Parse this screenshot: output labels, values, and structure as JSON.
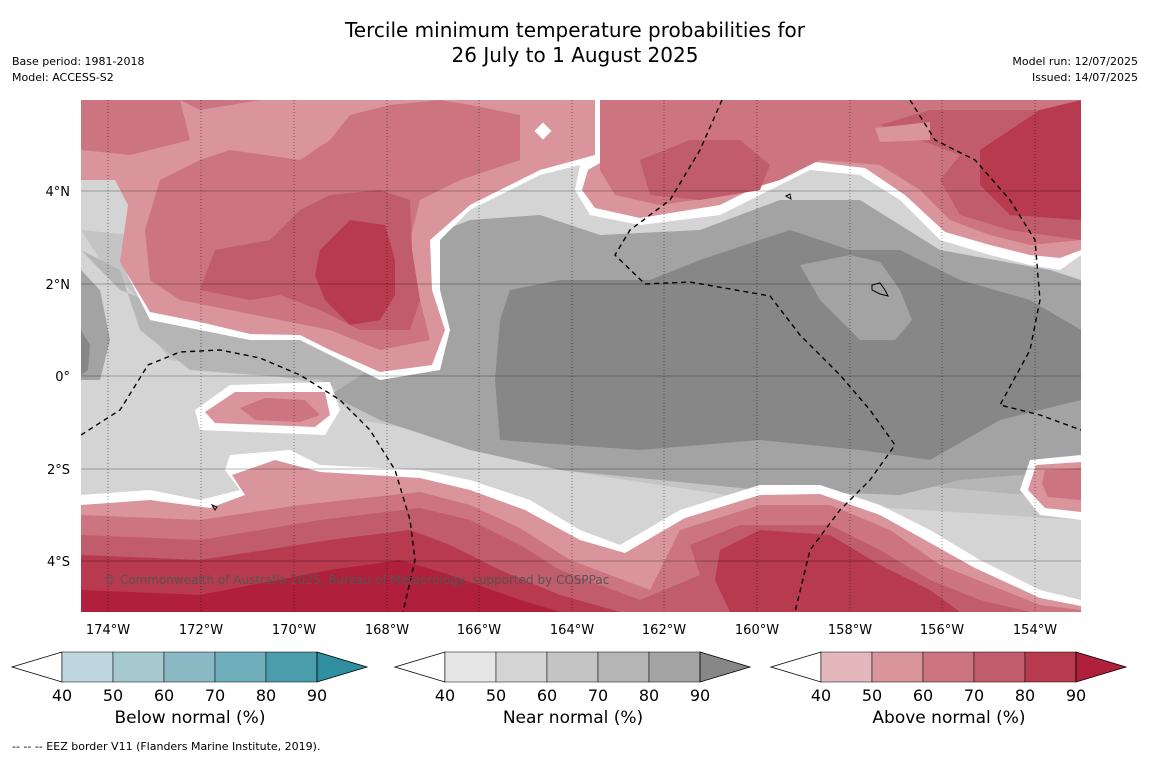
{
  "title": {
    "line1": "Tercile minimum temperature probabilities for",
    "line2": "26 July to 1 August 2025"
  },
  "meta_left": {
    "base_period": "Base period: 1981-2018",
    "model": "Model: ACCESS-S2"
  },
  "meta_right": {
    "model_run": "Model run: 12/07/2025",
    "issued": "Issued: 14/07/2025"
  },
  "map": {
    "lon_labels": [
      "174°W",
      "172°W",
      "170°W",
      "168°W",
      "166°W",
      "164°W",
      "162°W",
      "160°W",
      "158°W",
      "156°W",
      "154°W"
    ],
    "lat_labels": [
      "4°N",
      "2°N",
      "0°",
      "2°S",
      "4°S"
    ],
    "copyright": "© Commonwealth of Australia 2025, Bureau of Meteorology, supported by COSPPac"
  },
  "colorbars": [
    {
      "label": "Below normal (%)",
      "ticks": [
        "40",
        "50",
        "60",
        "70",
        "80",
        "90"
      ],
      "colors": [
        "#ffffff",
        "#bdd5dc",
        "#a6c8cf",
        "#8ab8c3",
        "#6faebb",
        "#4c9dab",
        "#2f8fa1"
      ]
    },
    {
      "label": "Near normal (%)",
      "ticks": [
        "40",
        "50",
        "60",
        "70",
        "80",
        "90"
      ],
      "colors": [
        "#ffffff",
        "#e6e6e6",
        "#d4d4d4",
        "#c4c4c4",
        "#b5b5b5",
        "#a3a3a3",
        "#878787"
      ]
    },
    {
      "label": "Above normal (%)",
      "ticks": [
        "40",
        "50",
        "60",
        "70",
        "80",
        "90"
      ],
      "colors": [
        "#ffffff",
        "#e3b7bc",
        "#d9949c",
        "#cc7480",
        "#c05c6b",
        "#b73a4f",
        "#b01f3b"
      ]
    }
  ],
  "footnote": "--  --  -- EEZ border V11 (Flanders Marine Institute, 2019)."
}
